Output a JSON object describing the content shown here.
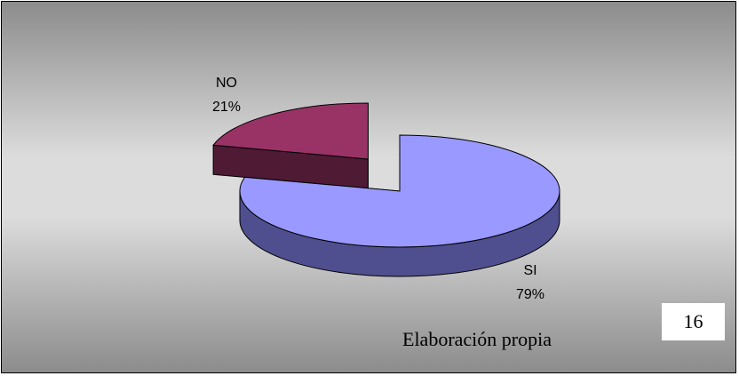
{
  "chart_data": {
    "type": "pie",
    "style": "3d-exploded",
    "slices": [
      {
        "label": "SI",
        "percent_label": "79%",
        "value": 79,
        "color": "#9999ff",
        "side_color": "#4f4f8f"
      },
      {
        "label": "NO",
        "percent_label": "21%",
        "value": 21,
        "color": "#993366",
        "side_color": "#4f1a34"
      }
    ],
    "legend": "none",
    "data_labels": "outside"
  },
  "source_note": "Elaboración propia",
  "page_number": "16",
  "colors": {
    "background_edge": "#8c8c8c",
    "background_center": "#dcdcdc",
    "outline": "#000000"
  }
}
